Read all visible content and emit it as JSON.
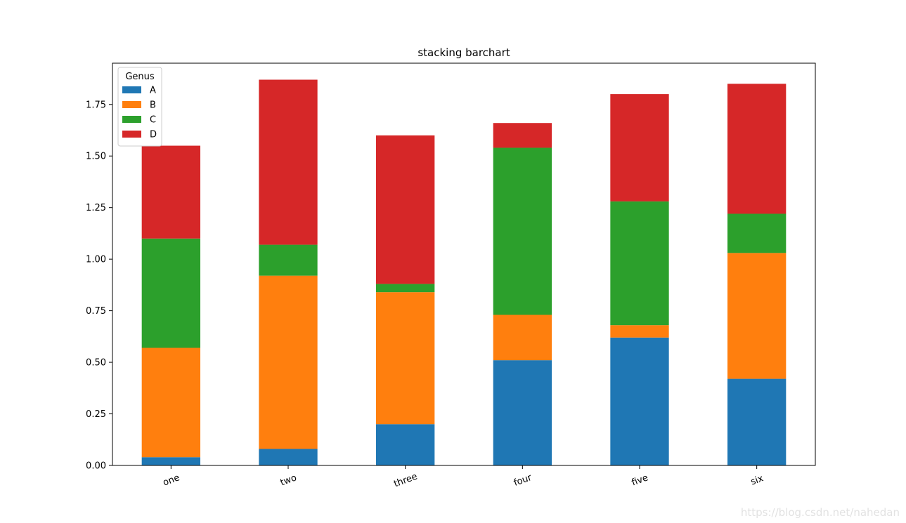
{
  "chart_data": {
    "type": "bar",
    "stacked": true,
    "title": "stacking barchart",
    "xlabel": "",
    "ylabel": "",
    "categories": [
      "one",
      "two",
      "three",
      "four",
      "five",
      "six"
    ],
    "ylim": [
      0,
      1.95
    ],
    "yticks": [
      0.0,
      0.25,
      0.5,
      0.75,
      1.0,
      1.25,
      1.5,
      1.75
    ],
    "ytick_labels": [
      "0.00",
      "0.25",
      "0.50",
      "0.75",
      "1.00",
      "1.25",
      "1.50",
      "1.75"
    ],
    "legend": {
      "title": "Genus",
      "position": "top-left"
    },
    "series": [
      {
        "name": "A",
        "color": "#1f77b4",
        "values": [
          0.04,
          0.08,
          0.2,
          0.51,
          0.62,
          0.42
        ]
      },
      {
        "name": "B",
        "color": "#ff7f0e",
        "values": [
          0.53,
          0.84,
          0.64,
          0.22,
          0.06,
          0.61
        ]
      },
      {
        "name": "C",
        "color": "#2ca02c",
        "values": [
          0.53,
          0.15,
          0.04,
          0.81,
          0.6,
          0.19
        ]
      },
      {
        "name": "D",
        "color": "#d62728",
        "values": [
          0.45,
          0.8,
          0.72,
          0.12,
          0.52,
          0.63
        ]
      }
    ]
  },
  "watermark": "https://blog.csdn.net/nahedan"
}
